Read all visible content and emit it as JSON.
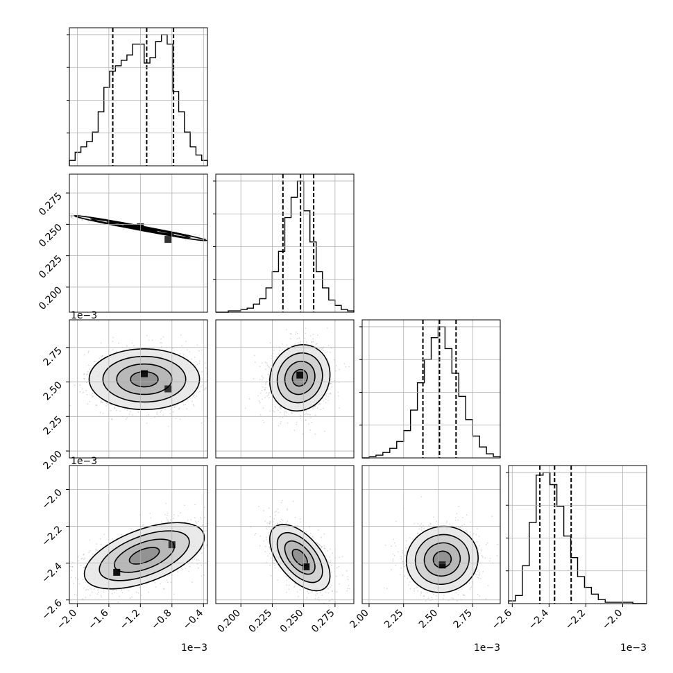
{
  "chart_data": {
    "type": "scatter",
    "layout": "corner-plot",
    "parameters": 4,
    "grid": true,
    "offset_label": "1e−3",
    "axes": [
      {
        "range": [
          -2.1,
          -0.35
        ],
        "ticks": [
          -2.0,
          -1.6,
          -1.2,
          -0.8,
          -0.4
        ],
        "tick_labels": [
          "−2.0",
          "−1.6",
          "−1.2",
          "−0.8",
          "−0.4"
        ],
        "scale": "1e-3"
      },
      {
        "range": [
          0.18,
          0.29
        ],
        "ticks": [
          0.2,
          0.225,
          0.25,
          0.275
        ],
        "tick_labels": [
          "0.200",
          "0.225",
          "0.250",
          "0.275"
        ],
        "scale": ""
      },
      {
        "range": [
          1.95,
          2.95
        ],
        "ticks": [
          2.0,
          2.25,
          2.5,
          2.75
        ],
        "tick_labels": [
          "2.00",
          "2.25",
          "2.50",
          "2.75"
        ],
        "scale": "1e-3"
      },
      {
        "range": [
          -2.62,
          -1.87
        ],
        "ticks": [
          -2.6,
          -2.4,
          -2.2,
          -2.0
        ],
        "tick_labels": [
          "−2.6",
          "−2.4",
          "−2.2",
          "−2.0"
        ],
        "scale": "1e-3"
      }
    ],
    "histograms": [
      {
        "edges_range": [
          -2.1,
          -0.35
        ],
        "counts": [
          4,
          10,
          14,
          18,
          25,
          40,
          58,
          70,
          74,
          78,
          82,
          90,
          90,
          76,
          80,
          92,
          97,
          90,
          55,
          40,
          25,
          14,
          8,
          4
        ],
        "quantiles": [
          -1.55,
          -1.12,
          -0.78
        ]
      },
      {
        "edges_range": [
          0.18,
          0.29
        ],
        "counts": [
          0,
          0,
          1,
          1,
          2,
          3,
          6,
          10,
          18,
          30,
          45,
          70,
          85,
          97,
          75,
          52,
          30,
          18,
          9,
          5,
          2,
          1
        ],
        "quantiles": [
          0.2335,
          0.2475,
          0.258
        ]
      },
      {
        "edges_range": [
          1.95,
          2.95
        ],
        "counts": [
          0,
          1,
          2,
          4,
          7,
          12,
          20,
          35,
          55,
          72,
          88,
          96,
          80,
          62,
          45,
          28,
          16,
          8,
          3,
          1
        ],
        "quantiles": [
          2.39,
          2.51,
          2.63
        ]
      },
      {
        "edges_range": [
          -2.62,
          -1.87
        ],
        "counts": [
          2,
          6,
          28,
          60,
          95,
          97,
          88,
          72,
          50,
          34,
          20,
          12,
          7,
          3,
          1,
          1,
          1,
          1,
          0,
          0
        ],
        "quantiles": [
          -2.45,
          -2.37,
          -2.28
        ]
      }
    ],
    "pairs": [
      {
        "x_param": 0,
        "y_param": 1,
        "center": [
          -1.2,
          0.247
        ],
        "spread": [
          0.42,
          0.005
        ],
        "correlation": -0.985,
        "peaks": [
          [
            -1.2,
            0.248
          ],
          [
            -0.85,
            0.238
          ]
        ]
      },
      {
        "x_param": 0,
        "y_param": 2,
        "center": [
          -1.15,
          2.52
        ],
        "spread": [
          0.35,
          0.11
        ],
        "correlation": 0.0,
        "peaks": [
          [
            -1.15,
            2.56
          ],
          [
            -0.85,
            2.45
          ]
        ]
      },
      {
        "x_param": 1,
        "y_param": 2,
        "center": [
          0.247,
          2.53
        ],
        "spread": [
          0.012,
          0.12
        ],
        "correlation": 0.1,
        "peaks": [
          [
            0.247,
            2.55
          ]
        ]
      },
      {
        "x_param": 0,
        "y_param": 3,
        "center": [
          -1.15,
          -2.36
        ],
        "spread": [
          0.38,
          0.09
        ],
        "correlation": 0.55,
        "peaks": [
          [
            -1.5,
            -2.45
          ],
          [
            -0.8,
            -2.3
          ]
        ]
      },
      {
        "x_param": 1,
        "y_param": 3,
        "center": [
          0.247,
          -2.37
        ],
        "spread": [
          0.012,
          0.09
        ],
        "correlation": -0.55,
        "peaks": [
          [
            0.252,
            -2.42
          ]
        ]
      },
      {
        "x_param": 2,
        "y_param": 3,
        "center": [
          2.53,
          -2.38
        ],
        "spread": [
          0.13,
          0.09
        ],
        "correlation": 0.05,
        "peaks": [
          [
            2.53,
            -2.41
          ]
        ]
      }
    ],
    "contour_levels_sigma": [
      0.5,
      1.0,
      1.5,
      2.0
    ]
  }
}
